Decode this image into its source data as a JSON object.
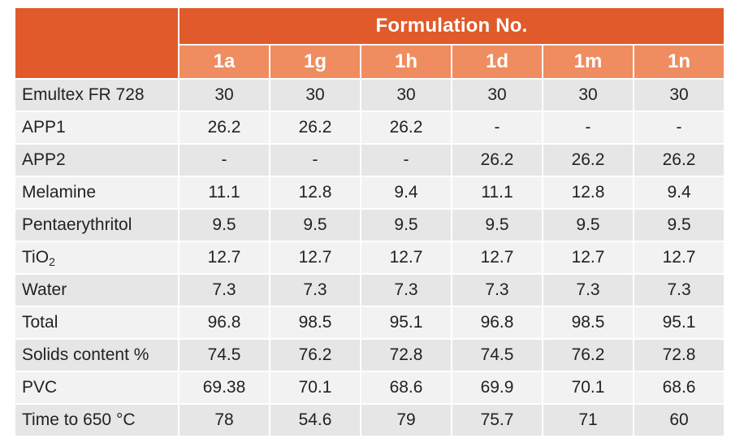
{
  "table": {
    "super_header": "Formulation No.",
    "columns": [
      "1a",
      "1g",
      "1h",
      "1d",
      "1m",
      "1n"
    ],
    "rows": [
      {
        "label": "Emultex FR 728",
        "values": [
          "30",
          "30",
          "30",
          "30",
          "30",
          "30"
        ]
      },
      {
        "label": "APP1",
        "values": [
          "26.2",
          "26.2",
          "26.2",
          "-",
          "-",
          "-"
        ]
      },
      {
        "label": "APP2",
        "values": [
          "-",
          "-",
          "-",
          "26.2",
          "26.2",
          "26.2"
        ]
      },
      {
        "label": "Melamine",
        "values": [
          "11.1",
          "12.8",
          "9.4",
          "11.1",
          "12.8",
          "9.4"
        ]
      },
      {
        "label": "Pentaerythritol",
        "values": [
          "9.5",
          "9.5",
          "9.5",
          "9.5",
          "9.5",
          "9.5"
        ]
      },
      {
        "label": "TiO",
        "label_sub": "2",
        "values": [
          "12.7",
          "12.7",
          "12.7",
          "12.7",
          "12.7",
          "12.7"
        ]
      },
      {
        "label": "Water",
        "values": [
          "7.3",
          "7.3",
          "7.3",
          "7.3",
          "7.3",
          "7.3"
        ]
      },
      {
        "label": "Total",
        "values": [
          "96.8",
          "98.5",
          "95.1",
          "96.8",
          "98.5",
          "95.1"
        ]
      },
      {
        "label": "Solids content %",
        "values": [
          "74.5",
          "76.2",
          "72.8",
          "74.5",
          "76.2",
          "72.8"
        ]
      },
      {
        "label": "PVC",
        "values": [
          "69.38",
          "70.1",
          "68.6",
          "69.9",
          "70.1",
          "68.6"
        ]
      },
      {
        "label": "Time to 650 °C",
        "values": [
          "78",
          "54.6",
          "79",
          "75.7",
          "71",
          "60"
        ]
      }
    ]
  },
  "colors": {
    "header_dark": "#e05a2b",
    "header_light": "#ef8c60",
    "row_dark": "#e6e6e6",
    "row_light": "#f2f2f2"
  }
}
